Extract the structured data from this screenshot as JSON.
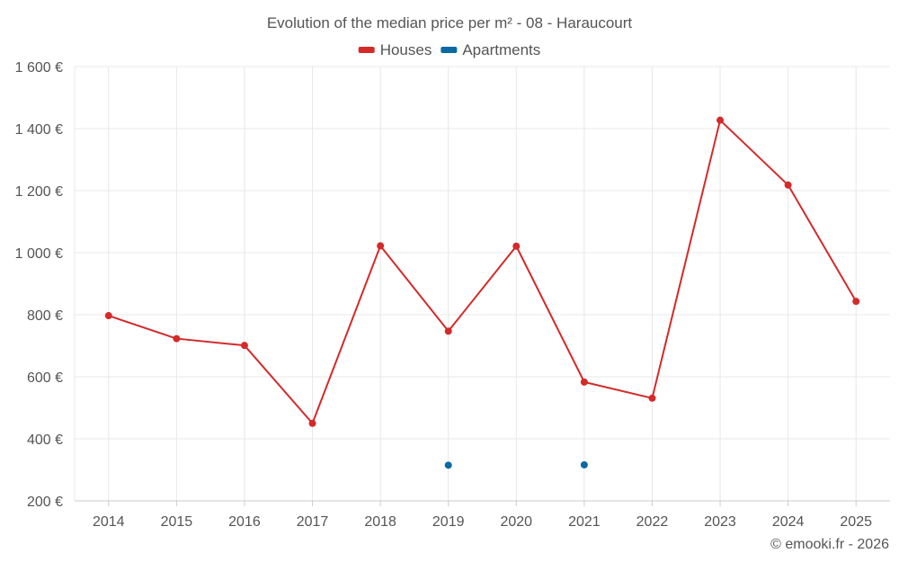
{
  "chart_data": {
    "type": "line",
    "title": "Evolution of the median price per m² - 08 - Haraucourt",
    "categories": [
      "2014",
      "2015",
      "2016",
      "2017",
      "2018",
      "2019",
      "2020",
      "2021",
      "2022",
      "2023",
      "2024",
      "2025"
    ],
    "series": [
      {
        "name": "Houses",
        "color": "#d42a2a",
        "values": [
          797,
          723,
          701,
          450,
          1022,
          747,
          1021,
          583,
          531,
          1427,
          1218,
          843
        ]
      },
      {
        "name": "Apartments",
        "color": "#0a6aa1",
        "values": [
          null,
          null,
          null,
          null,
          null,
          315,
          null,
          316,
          null,
          null,
          null,
          null
        ]
      }
    ],
    "y_ticks": [
      200,
      400,
      600,
      800,
      1000,
      1200,
      1400,
      1600
    ],
    "y_tick_labels": [
      "200 €",
      "400 €",
      "600 €",
      "800 €",
      "1 000 €",
      "1 200 €",
      "1 400 €",
      "1 600 €"
    ],
    "ylim": [
      200,
      1600
    ],
    "xlabel": "",
    "ylabel": "",
    "legend_position": "top-center",
    "grid": true
  },
  "credits": "© emooki.fr - 2026"
}
